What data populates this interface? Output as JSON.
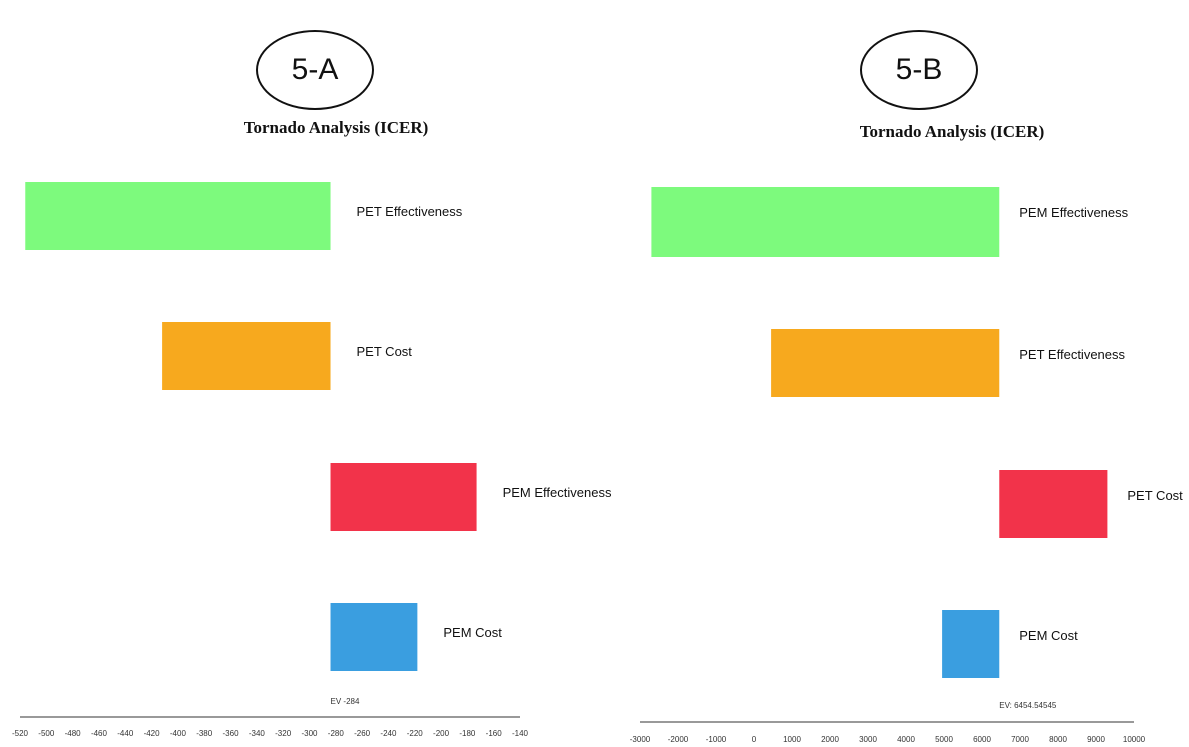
{
  "chart_data": [
    {
      "type": "bar",
      "orientation": "horizontal-tornado",
      "panel_label": "5-A",
      "title": "Tornado Analysis (ICER)",
      "ev_label": "EV -284",
      "ev": -284,
      "xlim": [
        -520,
        -140
      ],
      "ticks": [
        -520,
        -500,
        -480,
        -460,
        -440,
        -420,
        -400,
        -380,
        -360,
        -340,
        -320,
        -300,
        -280,
        -260,
        -240,
        -220,
        -200,
        -180,
        -160,
        -140
      ],
      "bars": [
        {
          "label": "PET Effectiveness",
          "low": -516,
          "high": -284,
          "color": "#7dfa7d"
        },
        {
          "label": "PET Cost",
          "low": -412,
          "high": -284,
          "color": "#f7a91e"
        },
        {
          "label": "PEM Effectiveness",
          "low": -284,
          "high": -173,
          "color": "#f2334a"
        },
        {
          "label": "PEM Cost",
          "low": -284,
          "high": -218,
          "color": "#3a9ee0"
        }
      ]
    },
    {
      "type": "bar",
      "orientation": "horizontal-tornado",
      "panel_label": "5-B",
      "title": "Tornado Analysis (ICER)",
      "ev_label": "EV: 6454.54545",
      "ev": 6454.54545,
      "xlim": [
        -3000,
        10000
      ],
      "ticks": [
        -3000,
        -2000,
        -1000,
        0,
        1000,
        2000,
        3000,
        4000,
        5000,
        6000,
        7000,
        8000,
        9000,
        10000
      ],
      "bars": [
        {
          "label": "PEM Effectiveness",
          "low": -2700,
          "high": 6454.54545,
          "color": "#7dfa7d"
        },
        {
          "label": "PET Effectiveness",
          "low": 450,
          "high": 6454.54545,
          "color": "#f7a91e"
        },
        {
          "label": "PET Cost",
          "low": 6454.54545,
          "high": 9300,
          "color": "#f2334a"
        },
        {
          "label": "PEM Cost",
          "low": 4950,
          "high": 6454.54545,
          "color": "#3a9ee0"
        }
      ]
    }
  ]
}
